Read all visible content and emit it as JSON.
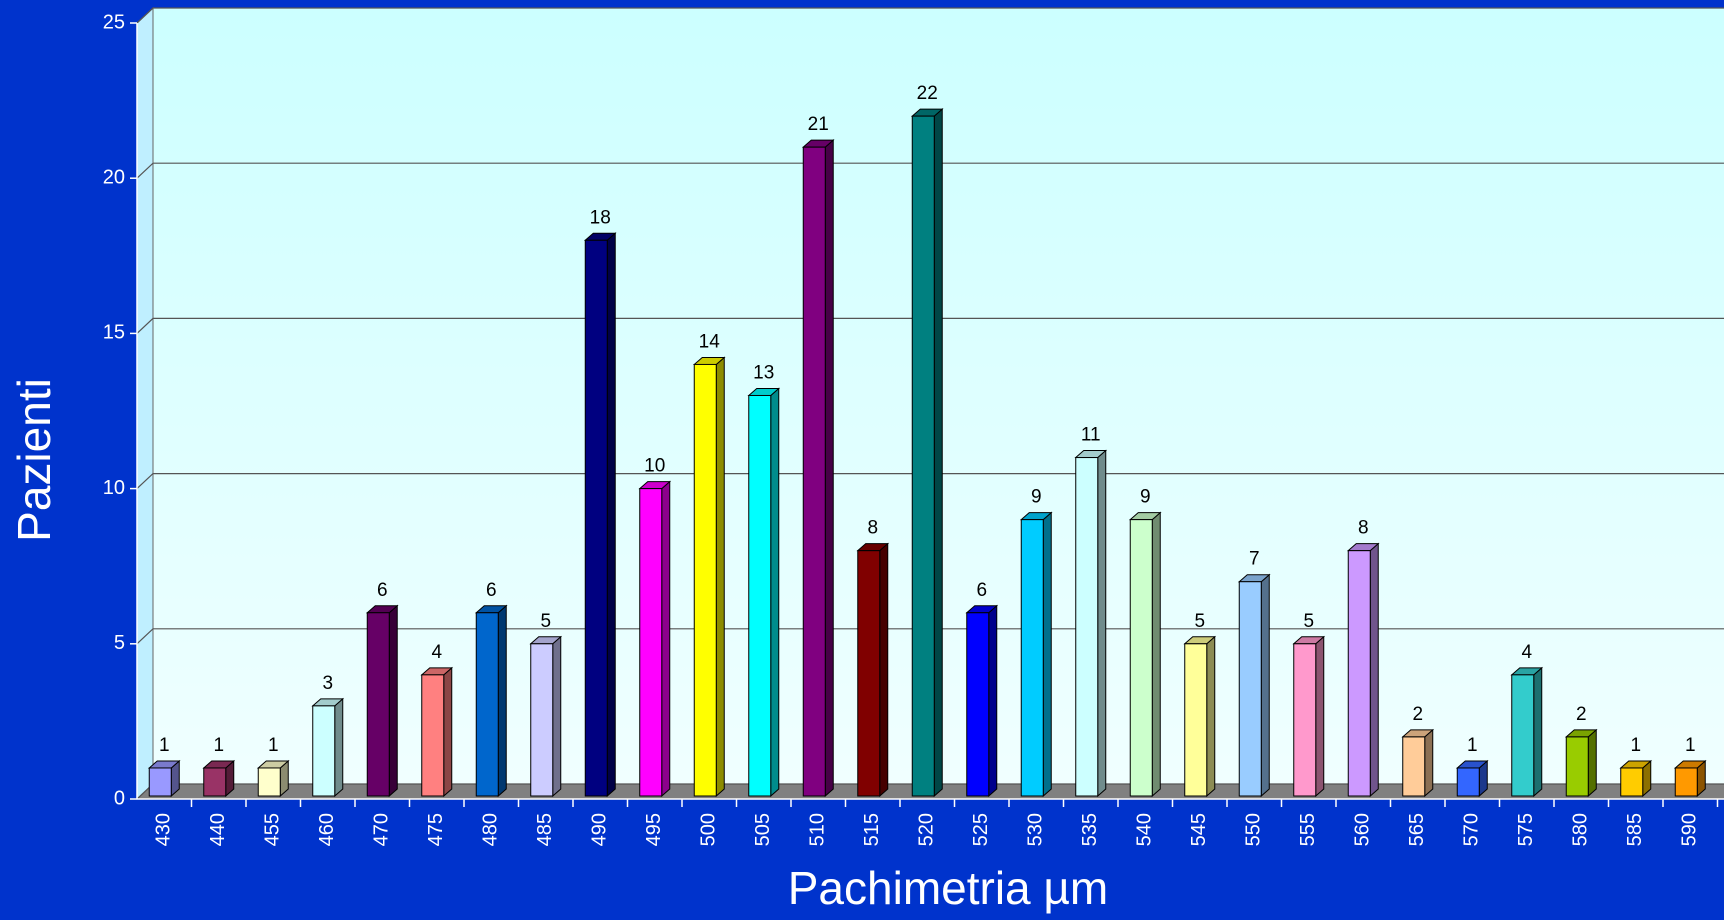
{
  "chart_data": {
    "type": "bar3d",
    "xlabel": "Pachimetria µm",
    "ylabel": "Pazienti",
    "categories": [
      "430",
      "440",
      "455",
      "460",
      "470",
      "475",
      "480",
      "485",
      "490",
      "495",
      "500",
      "505",
      "510",
      "515",
      "520",
      "525",
      "530",
      "535",
      "540",
      "545",
      "550",
      "555",
      "560",
      "565",
      "570",
      "575",
      "580",
      "585",
      "590"
    ],
    "values": [
      1,
      1,
      1,
      3,
      6,
      4,
      6,
      5,
      18,
      10,
      14,
      13,
      21,
      8,
      22,
      6,
      9,
      11,
      9,
      5,
      7,
      5,
      8,
      2,
      1,
      4,
      2,
      1,
      1
    ],
    "colors": [
      "#9999ff",
      "#993366",
      "#ffffcc",
      "#ccffff",
      "#660066",
      "#ff8080",
      "#0066cc",
      "#ccccff",
      "#000080",
      "#ff00ff",
      "#ffff00",
      "#00ffff",
      "#800080",
      "#800000",
      "#008080",
      "#0000ff",
      "#00ccff",
      "#ccffff",
      "#ccffcc",
      "#ffff99",
      "#99ccff",
      "#ff99cc",
      "#cc99ff",
      "#ffcc99",
      "#3366ff",
      "#33cccc",
      "#99cc00",
      "#ffcc00",
      "#ff9900"
    ],
    "ylim": [
      0,
      25
    ],
    "yticks": [
      0,
      5,
      10,
      15,
      20,
      25
    ],
    "grid": true
  }
}
